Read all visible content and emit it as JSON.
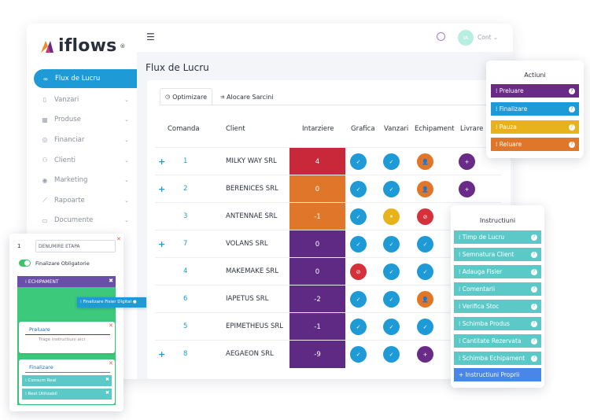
{
  "app": {
    "logo": "iflows",
    "logo_reg": "®",
    "user_initials": "IA",
    "user_label": "Cont",
    "page_title": "Flux de Lucru"
  },
  "sidebar": {
    "items": [
      {
        "label": "Flux de Lucru",
        "icon": "workflow-icon"
      },
      {
        "label": "Vanzari",
        "icon": "receipt-icon"
      },
      {
        "label": "Produse",
        "icon": "boxes-icon"
      },
      {
        "label": "Financiar",
        "icon": "coins-icon"
      },
      {
        "label": "Clienti",
        "icon": "users-icon"
      },
      {
        "label": "Marketing",
        "icon": "target-icon"
      },
      {
        "label": "Rapoarte",
        "icon": "chart-icon"
      },
      {
        "label": "Documente",
        "icon": "folder-icon"
      }
    ]
  },
  "tabs": [
    {
      "label": "Optimizare",
      "icon": "clock-icon"
    },
    {
      "label": "Alocare Sarcini",
      "icon": "assign-icon"
    }
  ],
  "table": {
    "headers": [
      "Comanda",
      "Client",
      "Intarziere",
      "Grafica",
      "Vanzari",
      "Echipament",
      "Livrare"
    ],
    "rows": [
      {
        "plus": "+",
        "cmd": "1",
        "client": "MILKY WAY SRL",
        "delay": "4"
      },
      {
        "plus": "+",
        "cmd": "2",
        "client": "BERENICES SRL",
        "delay": "0"
      },
      {
        "plus": "",
        "cmd": "3",
        "client": "ANTENNAE SRL",
        "delay": "-1"
      },
      {
        "plus": "+",
        "cmd": "7",
        "client": "VOLANS SRL",
        "delay": "0"
      },
      {
        "plus": "",
        "cmd": "4",
        "client": "MAKEMAKE SRL",
        "delay": "0"
      },
      {
        "plus": "",
        "cmd": "6",
        "client": "IAPETUS SRL",
        "delay": "-2"
      },
      {
        "plus": "",
        "cmd": "5",
        "client": "EPIMETHEUS SRL",
        "delay": "-1"
      },
      {
        "plus": "+",
        "cmd": "8",
        "client": "AEGAEON SRL",
        "delay": "-9"
      }
    ],
    "delay_colors": [
      "#c8283a",
      "#e0762a",
      "#e0762a",
      "#5e2a84",
      "#5e2a84",
      "#5e2a84",
      "#5e2a84",
      "#5e2a84"
    ],
    "status_colors": {
      "done": "#1e9ad6",
      "pending": "#e8b21a",
      "blocked": "#d4313b",
      "assign": "#e0762a",
      "add": "#6a2a88"
    }
  },
  "actions_panel": {
    "title": "Actiuni",
    "items": [
      {
        "label": "Preluare",
        "color": "#6a2a88"
      },
      {
        "label": "Finalizare",
        "color": "#1e9ad6"
      },
      {
        "label": "Pauza",
        "color": "#e8b21a"
      },
      {
        "label": "Reluare",
        "color": "#e0762a"
      }
    ]
  },
  "instructions_panel": {
    "title": "Instructiuni",
    "items": [
      "Timp de Lucru",
      "Semnatura Client",
      "Adauga Fisier",
      "Comentarii",
      "Verifica Stoc",
      "Schimba Produs",
      "Cantitate Rezervata",
      "Schimba Echipament"
    ],
    "add_label": "+ Instructiuni Proprii",
    "item_color": "#5cc9c9",
    "add_color": "#4a86e8"
  },
  "flow_panel": {
    "step_number": "1",
    "step_name": "DENUMIRE ETAPA",
    "toggle_label": "Finalizare Obligatorie",
    "header_bar": "ECHIPAMENT",
    "tooltip": "Finalizare Fisier Digital",
    "box1_title": "Preluare",
    "box1_hint": "Trage instructiuni aici",
    "box2_title": "Finalizare",
    "box2_items": [
      "Consum Real",
      "Rest Utilizabil"
    ]
  }
}
